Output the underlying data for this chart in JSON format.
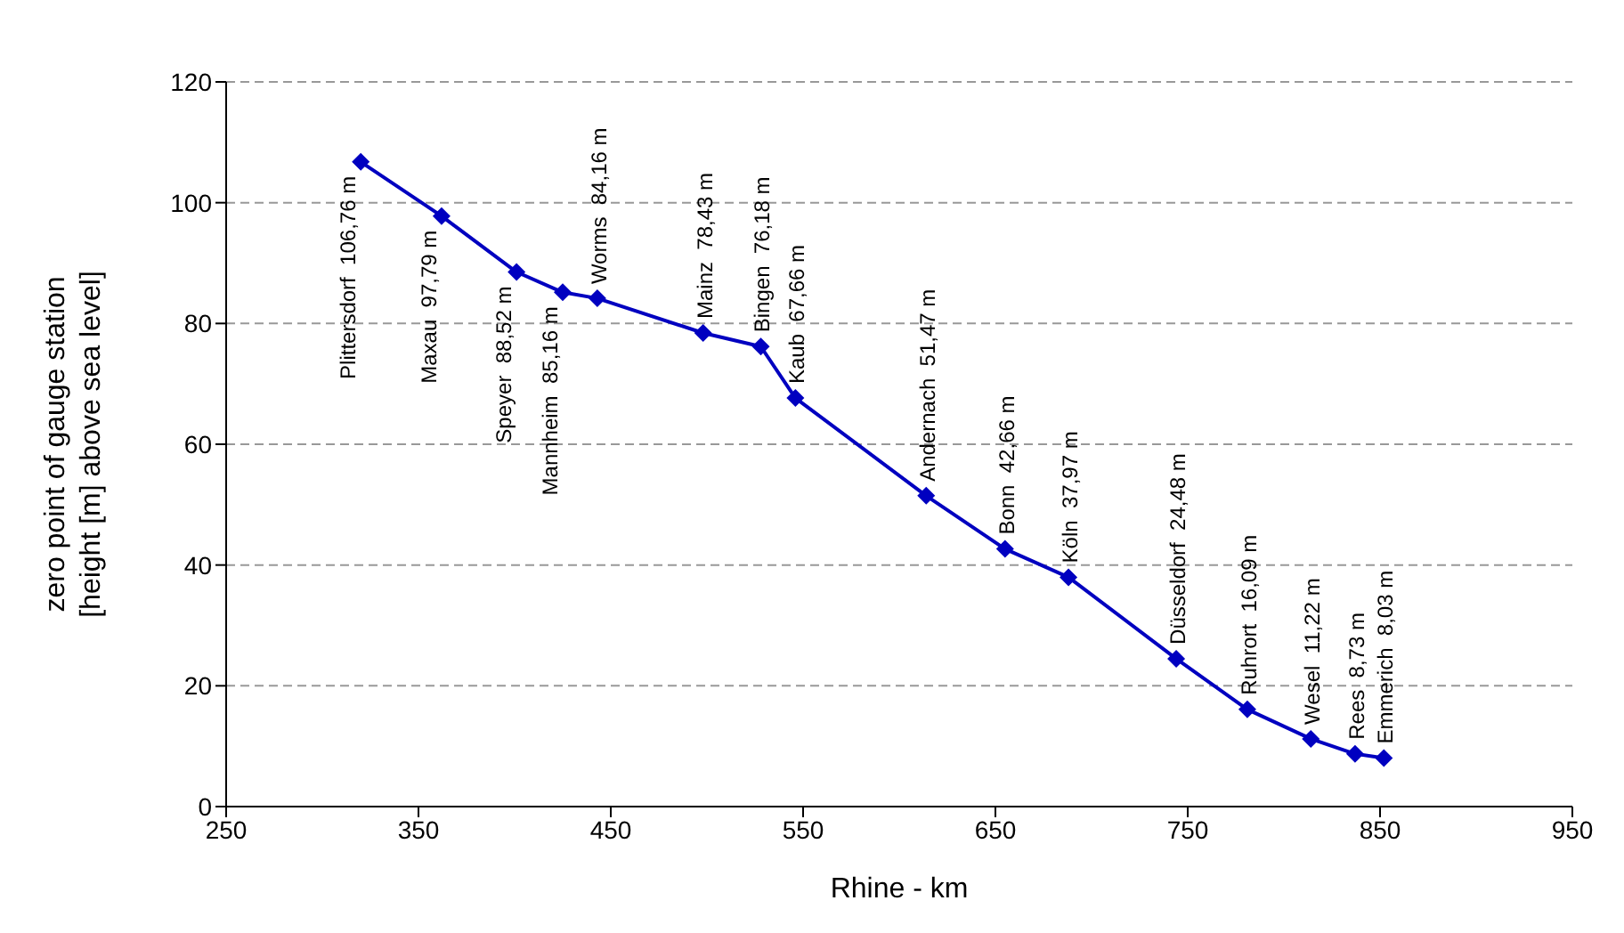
{
  "chart_data": {
    "type": "line",
    "xlabel": "Rhine - km",
    "ylabel": "zero point of gauge station\n[height [m] above sea level]",
    "x": [
      320,
      362,
      401,
      425,
      443,
      498,
      528,
      546,
      614,
      655,
      688,
      744,
      781,
      814,
      837,
      852
    ],
    "series": [
      {
        "color": "#0000c0",
        "values": [
          106.76,
          97.79,
          88.52,
          85.16,
          84.16,
          78.43,
          76.18,
          67.66,
          51.47,
          42.66,
          37.97,
          24.48,
          16.09,
          11.22,
          8.73,
          8.03
        ],
        "value_labels": [
          "Plittersdorf  106,76 m",
          "Maxau  97,79 m",
          "Speyer  88,52 m",
          "Mannheim  85,16 m",
          "Worms  84,16 m",
          "Mainz  78,43 m",
          "Bingen  76,18 m",
          "Kaub  67,66 m",
          "Andernach  51,47 m",
          "Bonn  42,66 m",
          "Köln  37,97 m",
          "Düsseldorf  24,48 m",
          "Ruhrort  16,09 m",
          "Wesel  11,22 m",
          "Rees  8,73 m",
          "Emmerich  8,03 m"
        ]
      }
    ],
    "xlim": [
      250,
      950
    ],
    "xticks": [
      250,
      350,
      450,
      550,
      650,
      750,
      850,
      950
    ],
    "ylim": [
      0,
      120
    ],
    "yticks": [
      0,
      20,
      40,
      60,
      80,
      100,
      120
    ],
    "grid": "y",
    "marker": "diamond",
    "line_style": "solid",
    "legend": false
  }
}
